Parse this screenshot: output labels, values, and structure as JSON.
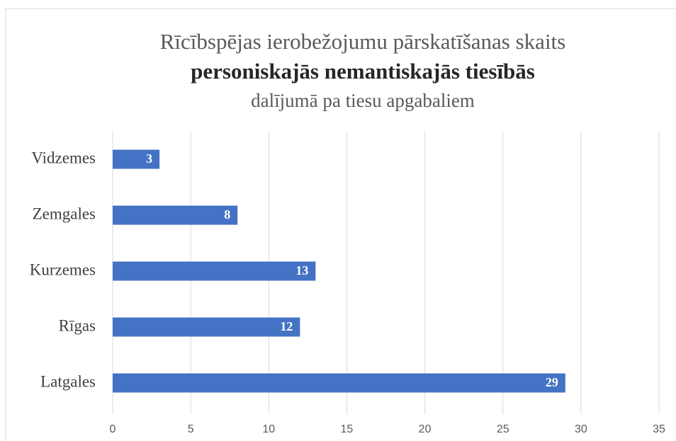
{
  "chart_data": {
    "type": "hbar",
    "title": [
      "Rīcībspējas ierobežojumu pārskatīšanas skaits",
      "personiskajās nemantiskajās tiesībās",
      "dalījumā pa tiesu apgabaliem"
    ],
    "categories": [
      "Vidzemes",
      "Zemgales",
      "Kurzemes",
      "Rīgas",
      "Latgales"
    ],
    "values": [
      3,
      8,
      13,
      12,
      29
    ],
    "color": "#4472c4",
    "xlim": [
      0,
      35
    ],
    "xticks": [
      0,
      5,
      10,
      15,
      20,
      25,
      30,
      35
    ],
    "grid": true
  }
}
